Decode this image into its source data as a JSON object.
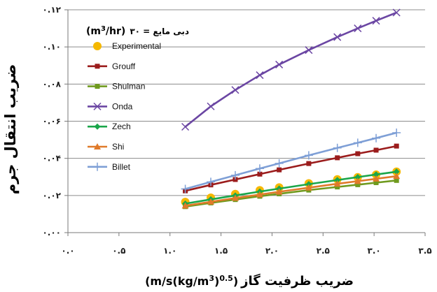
{
  "chart_data": {
    "type": "line",
    "xlabel": "ضریب ظرفیت گاز",
    "xlabel_unit": "(m/s(kg/m",
    "xlabel_unit_sup1": "3",
    "xlabel_unit_mid": ")",
    "xlabel_unit_sup2": "0.5",
    "xlabel_unit_end": ")",
    "ylabel": "ضریب انتقال جرم",
    "condition_label": "دبی مایع = ۳۰",
    "condition_unit": "(m",
    "condition_unit_sup": "3",
    "condition_unit_end": "/hr)",
    "xlim": [
      0,
      3.5
    ],
    "ylim": [
      0,
      0.12
    ],
    "x_ticks": [
      0,
      0.5,
      1.0,
      1.5,
      2.0,
      2.5,
      3.0,
      3.5
    ],
    "x_tick_labels": [
      "۰.۰",
      "۰.۵",
      "۱.۰",
      "۱.۵",
      "۲.۰",
      "۲.۵",
      "۳.۰",
      "۳.۵"
    ],
    "y_ticks": [
      0,
      0.02,
      0.04,
      0.06,
      0.08,
      0.1,
      0.12
    ],
    "y_tick_labels": [
      "۰.۰۰",
      "۰.۰۲",
      "۰.۰۴",
      "۰.۰۶",
      "۰.۰۸",
      "۰.۱۰",
      "۰.۱۲"
    ],
    "grid": "horizontal",
    "legend_position": "top-left",
    "x": [
      1.15,
      1.4,
      1.64,
      1.88,
      2.07,
      2.36,
      2.64,
      2.84,
      3.02,
      3.22
    ],
    "series": [
      {
        "name": "Experimental",
        "marker": "circle",
        "color": "#f5b800",
        "values": [
          0.0165,
          0.0188,
          0.0208,
          0.0228,
          0.0243,
          0.0265,
          0.0287,
          0.0298,
          0.0312,
          0.0328
        ]
      },
      {
        "name": "Grouff",
        "marker": "square",
        "color": "#9b1c1c",
        "values": [
          0.0225,
          0.0257,
          0.0286,
          0.0315,
          0.0338,
          0.0372,
          0.0403,
          0.0425,
          0.0444,
          0.0466
        ]
      },
      {
        "name": "Shulman",
        "marker": "square",
        "color": "#6f9a1e",
        "values": [
          0.014,
          0.016,
          0.0178,
          0.0196,
          0.0209,
          0.0229,
          0.0246,
          0.0258,
          0.0269,
          0.0281
        ]
      },
      {
        "name": "Onda",
        "marker": "x",
        "color": "#6b46a3",
        "values": [
          0.057,
          0.068,
          0.0768,
          0.0848,
          0.0905,
          0.0983,
          0.1053,
          0.11,
          0.1141,
          0.1185
        ]
      },
      {
        "name": "Zech",
        "marker": "diamond",
        "color": "#1aa64a",
        "values": [
          0.0156,
          0.0179,
          0.02,
          0.0221,
          0.0237,
          0.0261,
          0.0283,
          0.0299,
          0.0313,
          0.0328
        ]
      },
      {
        "name": "Shi",
        "marker": "triangle",
        "color": "#e07a2a",
        "values": [
          0.0145,
          0.0166,
          0.0186,
          0.0205,
          0.022,
          0.0242,
          0.0263,
          0.0277,
          0.029,
          0.0304
        ]
      },
      {
        "name": "Billet",
        "marker": "plus",
        "color": "#7e9fd6",
        "values": [
          0.0235,
          0.0273,
          0.0309,
          0.0345,
          0.0373,
          0.0416,
          0.0456,
          0.0484,
          0.0509,
          0.0538
        ]
      }
    ]
  }
}
